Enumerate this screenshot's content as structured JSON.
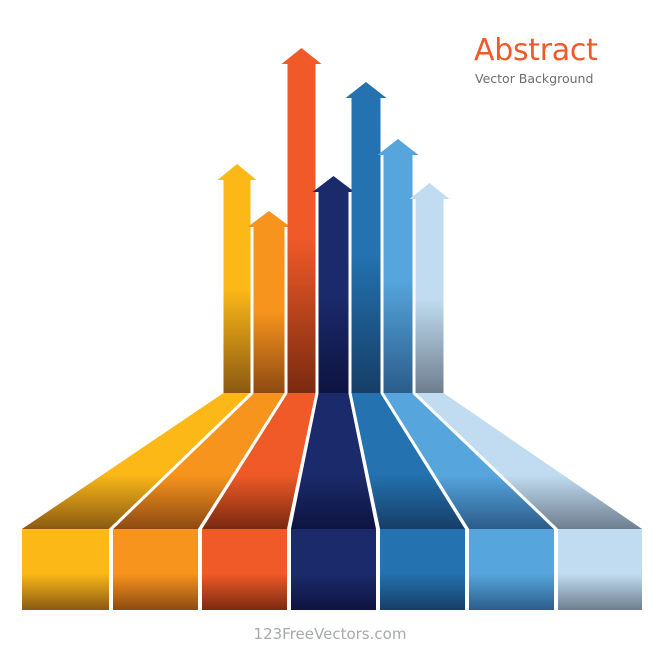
{
  "heading": {
    "title": "Abstract",
    "subtitle": "Vector Background"
  },
  "footer": {
    "credit": "123FreeVectors.com"
  },
  "illustration": {
    "strips": [
      {
        "name": "yellow-strip",
        "color": "#fbb817",
        "dark": "#8a5a12"
      },
      {
        "name": "light-orange-strip",
        "color": "#f7941d",
        "dark": "#8e4a12"
      },
      {
        "name": "orange-strip",
        "color": "#f05a28",
        "dark": "#7a2a10"
      },
      {
        "name": "navy-strip",
        "color": "#1b2a6b",
        "dark": "#0e1440"
      },
      {
        "name": "blue-strip",
        "color": "#2472b0",
        "dark": "#163e66"
      },
      {
        "name": "light-blue-strip",
        "color": "#56a6dd",
        "dark": "#2c5c8a"
      },
      {
        "name": "pale-blue-strip",
        "color": "#c1dcf1",
        "dark": "#6e7e8e"
      }
    ]
  }
}
